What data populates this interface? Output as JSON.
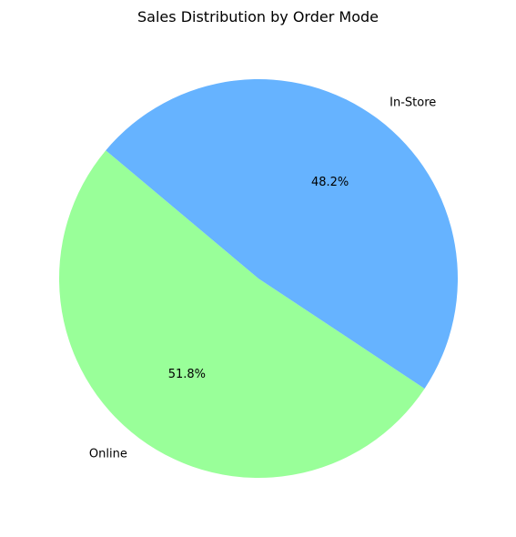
{
  "chart_data": {
    "type": "pie",
    "title": "Sales Distribution by Order Mode",
    "labels": [
      "Online",
      "In-Store"
    ],
    "values": [
      51.8,
      48.2
    ],
    "percent_labels": [
      "51.8%",
      "48.2%"
    ],
    "colors": [
      "#99ff99",
      "#66b3ff"
    ],
    "start_angle_deg": 140,
    "direction": "counterclockwise",
    "legend": "none",
    "grid": false
  }
}
